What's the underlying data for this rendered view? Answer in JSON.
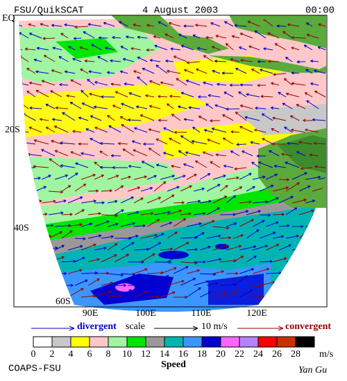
{
  "header": {
    "title": "FSU/QuikSCAT",
    "date": "4 August 2003",
    "time": "00:00"
  },
  "map": {
    "lat_labels": [
      "EQ",
      "20S",
      "40S",
      "60S"
    ],
    "lon_labels": [
      "90E",
      "100E",
      "110E",
      "120E"
    ]
  },
  "legend": {
    "divergent": "divergent",
    "scale": "scale",
    "scale_value": "10 m/s",
    "convergent": "convergent"
  },
  "colorbar": {
    "labels": [
      0,
      2,
      4,
      6,
      8,
      10,
      12,
      14,
      16,
      18,
      20,
      22,
      24,
      26,
      28
    ],
    "unit": "m/s",
    "title": "Speed",
    "colors": [
      "#ffffff",
      "#c8c8c8",
      "#ffff00",
      "#ffc8c8",
      "#a0f5a0",
      "#00e600",
      "#999999",
      "#00b4b4",
      "#3c96ff",
      "#0000d2",
      "#ff64ff",
      "#b482ff",
      "#ff0000",
      "#c83200",
      "#000000"
    ]
  },
  "footer": {
    "left": "COAPS-FSU",
    "right": "Yan Gu"
  }
}
